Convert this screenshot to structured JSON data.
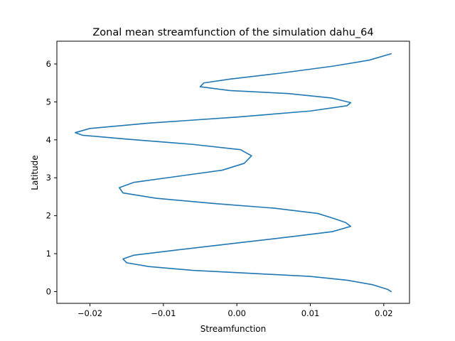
{
  "chart_data": {
    "type": "line",
    "title": "Zonal mean streamfunction of the simulation dahu_64",
    "xlabel": "Streamfunction",
    "ylabel": "Latitude",
    "xlim": [
      -0.0245,
      0.0235
    ],
    "ylim": [
      -0.31,
      6.6
    ],
    "x_ticks": [
      -0.02,
      -0.01,
      0.0,
      0.01,
      0.02
    ],
    "x_tick_labels": [
      "−0.02",
      "−0.01",
      "0.00",
      "0.01",
      "0.02"
    ],
    "y_ticks": [
      0,
      1,
      2,
      3,
      4,
      5,
      6
    ],
    "y_tick_labels": [
      "0",
      "1",
      "2",
      "3",
      "4",
      "5",
      "6"
    ],
    "grid": false,
    "legend": "none",
    "series": [
      {
        "color": "#1f77b4",
        "points": [
          [
            0.021,
            0.0
          ],
          [
            0.0205,
            0.06
          ],
          [
            0.0185,
            0.18
          ],
          [
            0.015,
            0.3
          ],
          [
            0.01,
            0.4
          ],
          [
            0.002,
            0.48
          ],
          [
            -0.006,
            0.56
          ],
          [
            -0.012,
            0.66
          ],
          [
            -0.015,
            0.76
          ],
          [
            -0.0155,
            0.86
          ],
          [
            -0.014,
            0.96
          ],
          [
            -0.008,
            1.1
          ],
          [
            0.0,
            1.28
          ],
          [
            0.008,
            1.46
          ],
          [
            0.013,
            1.58
          ],
          [
            0.0155,
            1.72
          ],
          [
            0.0148,
            1.82
          ],
          [
            0.013,
            1.94
          ],
          [
            0.011,
            2.06
          ],
          [
            0.005,
            2.2
          ],
          [
            -0.003,
            2.32
          ],
          [
            -0.011,
            2.46
          ],
          [
            -0.0155,
            2.6
          ],
          [
            -0.016,
            2.74
          ],
          [
            -0.014,
            2.88
          ],
          [
            -0.008,
            3.04
          ],
          [
            -0.002,
            3.2
          ],
          [
            0.001,
            3.38
          ],
          [
            0.002,
            3.58
          ],
          [
            0.0005,
            3.74
          ],
          [
            -0.006,
            3.88
          ],
          [
            -0.015,
            4.02
          ],
          [
            -0.021,
            4.12
          ],
          [
            -0.022,
            4.19
          ],
          [
            -0.02,
            4.3
          ],
          [
            -0.012,
            4.44
          ],
          [
            0.0,
            4.6
          ],
          [
            0.01,
            4.76
          ],
          [
            0.015,
            4.9
          ],
          [
            0.0155,
            4.98
          ],
          [
            0.013,
            5.1
          ],
          [
            0.007,
            5.22
          ],
          [
            -0.001,
            5.3
          ],
          [
            -0.005,
            5.4
          ],
          [
            -0.0045,
            5.5
          ],
          [
            -0.001,
            5.6
          ],
          [
            0.006,
            5.76
          ],
          [
            0.013,
            5.94
          ],
          [
            0.018,
            6.1
          ],
          [
            0.021,
            6.27
          ]
        ]
      }
    ]
  }
}
